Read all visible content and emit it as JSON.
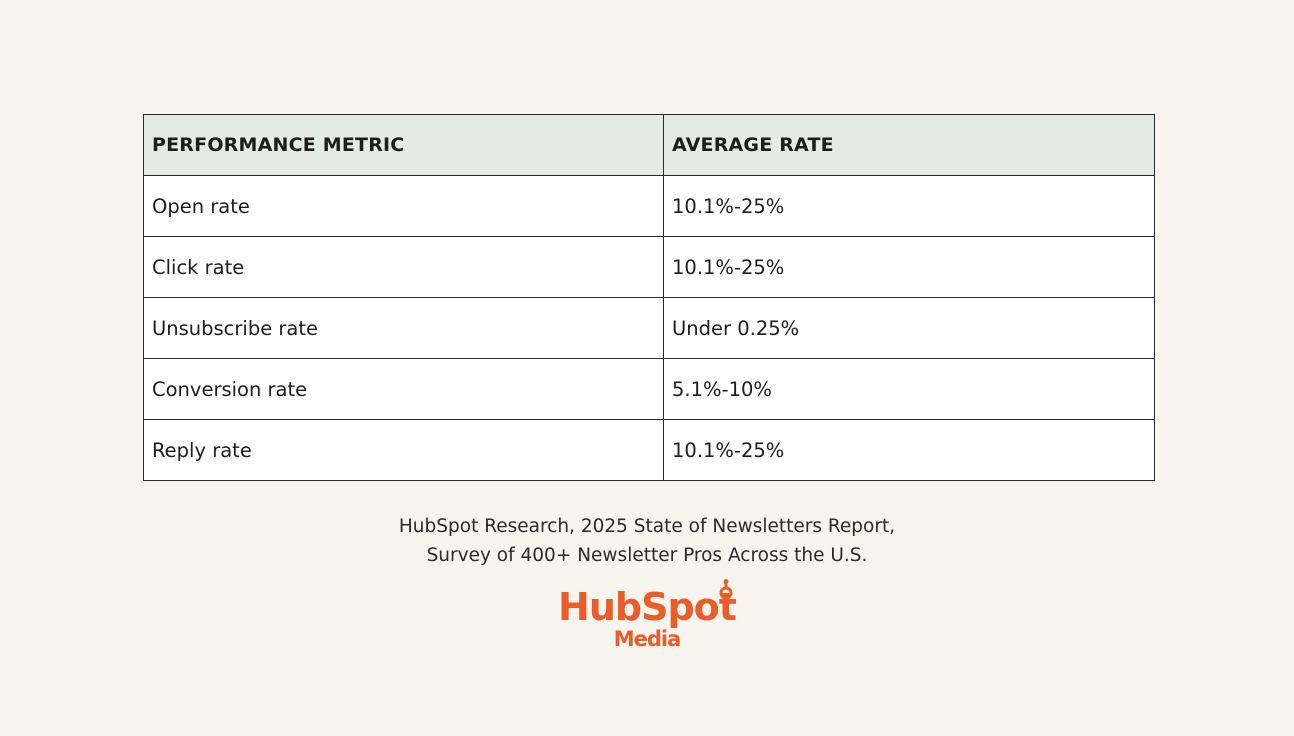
{
  "table": {
    "headers": [
      "PERFORMANCE METRIC",
      "AVERAGE RATE"
    ],
    "rows": [
      [
        "Open rate",
        "10.1%-25%"
      ],
      [
        "Click rate",
        "10.1%-25%"
      ],
      [
        "Unsubscribe rate",
        "Under 0.25%"
      ],
      [
        "Conversion rate",
        "5.1%-10%"
      ],
      [
        "Reply rate",
        "10.1%-25%"
      ]
    ]
  },
  "caption": {
    "line1": "HubSpot Research, 2025 State of Newsletters Report,",
    "line2": "Survey of 400+ Newsletter Pros Across the U.S."
  },
  "logo": {
    "main": "HubSpot",
    "sub": "Media",
    "color": "#ea5c2a"
  },
  "colors": {
    "background": "#f8f5ef",
    "header_fill": "#e3ebe7"
  }
}
